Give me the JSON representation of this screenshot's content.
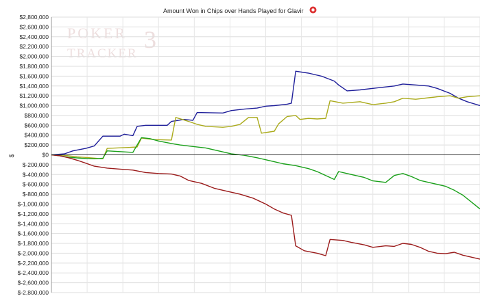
{
  "chart_data": {
    "type": "line",
    "title": "Amount Won in Chips over Hands Played for Glavir",
    "title_icon": "poker-chip-icon",
    "watermark": "POKER TRACKER 3",
    "xlabel": "",
    "ylabel": "$",
    "ylim": [
      -2800000,
      2800000
    ],
    "y_ticks": [
      2800000,
      2600000,
      2400000,
      2200000,
      2000000,
      1800000,
      1600000,
      1400000,
      1200000,
      1000000,
      800000,
      600000,
      400000,
      200000,
      0,
      -200000,
      -400000,
      -600000,
      -800000,
      -1000000,
      -1200000,
      -1400000,
      -1600000,
      -1800000,
      -2000000,
      -2200000,
      -2400000,
      -2600000,
      -2800000
    ],
    "y_tick_labels": [
      "$2,800,000",
      "$2,600,000",
      "$2,400,000",
      "$2,200,000",
      "$2,000,000",
      "$1,800,000",
      "$1,600,000",
      "$1,400,000",
      "$1,200,000",
      "$1,000,000",
      "$800,000",
      "$600,000",
      "$400,000",
      "$200,000",
      "$0",
      "$-200,000",
      "$-400,000",
      "$-600,000",
      "$-800,000",
      "$-1,000,000",
      "$-1,200,000",
      "$-1,400,000",
      "$-1,600,000",
      "$-1,800,000",
      "$-2,000,000",
      "$-2,200,000",
      "$-2,400,000",
      "$-2,600,000",
      "$-2,800,000"
    ],
    "xlim": [
      0,
      100
    ],
    "grid": true,
    "series": [
      {
        "color": "#1f1f9a",
        "points": [
          [
            0,
            0
          ],
          [
            3,
            20000
          ],
          [
            5,
            80000
          ],
          [
            8,
            130000
          ],
          [
            10,
            180000
          ],
          [
            12,
            380000
          ],
          [
            16,
            380000
          ],
          [
            17,
            420000
          ],
          [
            19,
            390000
          ],
          [
            20,
            580000
          ],
          [
            22,
            600000
          ],
          [
            27,
            600000
          ],
          [
            28,
            680000
          ],
          [
            31,
            720000
          ],
          [
            33,
            700000
          ],
          [
            34,
            860000
          ],
          [
            40,
            850000
          ],
          [
            42,
            900000
          ],
          [
            45,
            930000
          ],
          [
            48,
            950000
          ],
          [
            50,
            990000
          ],
          [
            52,
            1000000
          ],
          [
            55,
            1030000
          ],
          [
            56,
            1050000
          ],
          [
            57,
            1700000
          ],
          [
            60,
            1660000
          ],
          [
            63,
            1600000
          ],
          [
            66,
            1500000
          ],
          [
            67,
            1420000
          ],
          [
            69,
            1300000
          ],
          [
            72,
            1320000
          ],
          [
            76,
            1360000
          ],
          [
            80,
            1400000
          ],
          [
            82,
            1440000
          ],
          [
            85,
            1420000
          ],
          [
            88,
            1400000
          ],
          [
            90,
            1350000
          ],
          [
            93,
            1250000
          ],
          [
            95,
            1150000
          ],
          [
            97,
            1080000
          ],
          [
            100,
            1000000
          ]
        ]
      },
      {
        "color": "#aaaa1a",
        "points": [
          [
            0,
            0
          ],
          [
            3,
            -10000
          ],
          [
            6,
            -40000
          ],
          [
            9,
            -60000
          ],
          [
            12,
            -80000
          ],
          [
            13,
            130000
          ],
          [
            18,
            150000
          ],
          [
            20,
            160000
          ],
          [
            21,
            340000
          ],
          [
            24,
            310000
          ],
          [
            28,
            300000
          ],
          [
            29,
            760000
          ],
          [
            32,
            680000
          ],
          [
            34,
            620000
          ],
          [
            36,
            580000
          ],
          [
            40,
            560000
          ],
          [
            42,
            580000
          ],
          [
            44,
            620000
          ],
          [
            46,
            760000
          ],
          [
            48,
            760000
          ],
          [
            49,
            440000
          ],
          [
            52,
            480000
          ],
          [
            53,
            630000
          ],
          [
            55,
            780000
          ],
          [
            57,
            800000
          ],
          [
            58,
            720000
          ],
          [
            60,
            740000
          ],
          [
            62,
            730000
          ],
          [
            64,
            740000
          ],
          [
            65,
            1100000
          ],
          [
            68,
            1050000
          ],
          [
            72,
            1080000
          ],
          [
            75,
            1020000
          ],
          [
            78,
            1050000
          ],
          [
            80,
            1080000
          ],
          [
            82,
            1150000
          ],
          [
            85,
            1130000
          ],
          [
            88,
            1160000
          ],
          [
            90,
            1180000
          ],
          [
            93,
            1200000
          ],
          [
            95,
            1150000
          ],
          [
            97,
            1180000
          ],
          [
            100,
            1200000
          ]
        ]
      },
      {
        "color": "#1aa01a",
        "points": [
          [
            0,
            0
          ],
          [
            2,
            -20000
          ],
          [
            4,
            -50000
          ],
          [
            7,
            -70000
          ],
          [
            10,
            -80000
          ],
          [
            12,
            -70000
          ],
          [
            13,
            80000
          ],
          [
            17,
            60000
          ],
          [
            19,
            50000
          ],
          [
            21,
            350000
          ],
          [
            23,
            330000
          ],
          [
            25,
            280000
          ],
          [
            28,
            230000
          ],
          [
            30,
            200000
          ],
          [
            33,
            170000
          ],
          [
            36,
            140000
          ],
          [
            38,
            100000
          ],
          [
            40,
            60000
          ],
          [
            42,
            20000
          ],
          [
            45,
            -10000
          ],
          [
            48,
            -60000
          ],
          [
            50,
            -100000
          ],
          [
            52,
            -140000
          ],
          [
            54,
            -180000
          ],
          [
            57,
            -220000
          ],
          [
            60,
            -280000
          ],
          [
            62,
            -340000
          ],
          [
            64,
            -420000
          ],
          [
            66,
            -500000
          ],
          [
            67,
            -340000
          ],
          [
            70,
            -400000
          ],
          [
            73,
            -460000
          ],
          [
            75,
            -530000
          ],
          [
            78,
            -560000
          ],
          [
            80,
            -420000
          ],
          [
            82,
            -380000
          ],
          [
            84,
            -440000
          ],
          [
            86,
            -520000
          ],
          [
            88,
            -560000
          ],
          [
            90,
            -600000
          ],
          [
            92,
            -640000
          ],
          [
            94,
            -720000
          ],
          [
            96,
            -820000
          ],
          [
            98,
            -960000
          ],
          [
            100,
            -1100000
          ]
        ]
      },
      {
        "color": "#9a1a1a",
        "points": [
          [
            0,
            0
          ],
          [
            2,
            -20000
          ],
          [
            4,
            -60000
          ],
          [
            6,
            -110000
          ],
          [
            8,
            -170000
          ],
          [
            10,
            -230000
          ],
          [
            13,
            -270000
          ],
          [
            16,
            -290000
          ],
          [
            19,
            -310000
          ],
          [
            22,
            -360000
          ],
          [
            25,
            -380000
          ],
          [
            28,
            -390000
          ],
          [
            30,
            -430000
          ],
          [
            32,
            -520000
          ],
          [
            35,
            -580000
          ],
          [
            38,
            -680000
          ],
          [
            41,
            -740000
          ],
          [
            44,
            -800000
          ],
          [
            47,
            -880000
          ],
          [
            50,
            -1000000
          ],
          [
            52,
            -1100000
          ],
          [
            54,
            -1180000
          ],
          [
            56,
            -1230000
          ],
          [
            57,
            -1850000
          ],
          [
            59,
            -1950000
          ],
          [
            62,
            -2000000
          ],
          [
            64,
            -2050000
          ],
          [
            65,
            -1720000
          ],
          [
            68,
            -1740000
          ],
          [
            70,
            -1780000
          ],
          [
            73,
            -1830000
          ],
          [
            75,
            -1880000
          ],
          [
            78,
            -1850000
          ],
          [
            80,
            -1860000
          ],
          [
            82,
            -1800000
          ],
          [
            84,
            -1820000
          ],
          [
            86,
            -1880000
          ],
          [
            88,
            -1960000
          ],
          [
            90,
            -2000000
          ],
          [
            92,
            -2010000
          ],
          [
            94,
            -1980000
          ],
          [
            96,
            -2040000
          ],
          [
            98,
            -2080000
          ],
          [
            100,
            -2120000
          ]
        ]
      }
    ]
  }
}
